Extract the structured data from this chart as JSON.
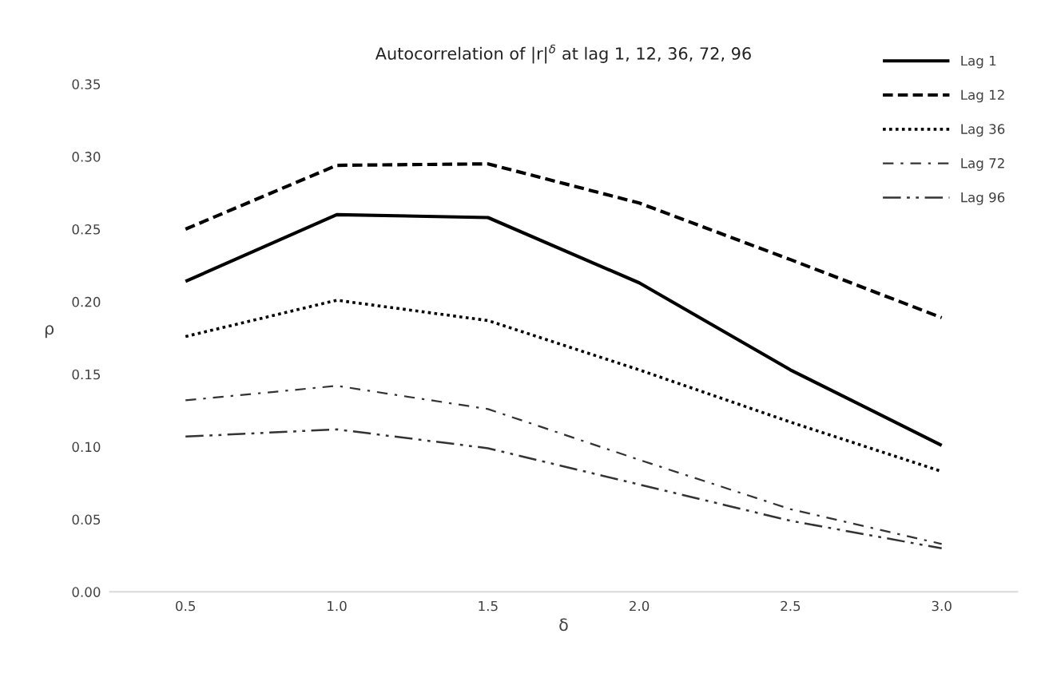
{
  "chart_data": {
    "type": "line",
    "title": "Autocorrelation of |r|$^{δ}$ at lag 1, 12, 36, 72, 96",
    "xlabel": "δ",
    "ylabel": "ρ",
    "categories": [
      "0.5",
      "1.0",
      "1.5",
      "2.0",
      "2.5",
      "3.0"
    ],
    "series": [
      {
        "name": "Lag 1",
        "color": "#000000",
        "line_style": "solid",
        "values": [
          0.214,
          0.26,
          0.258,
          0.213,
          0.153,
          0.101
        ]
      },
      {
        "name": "Lag 12",
        "color": "#000000",
        "line_style": "dashed",
        "values": [
          0.25,
          0.294,
          0.295,
          0.268,
          0.229,
          0.189
        ]
      },
      {
        "name": "Lag 36",
        "color": "#000000",
        "line_style": "dotted",
        "values": [
          0.176,
          0.201,
          0.187,
          0.153,
          0.117,
          0.083
        ]
      },
      {
        "name": "Lag 72",
        "color": "#333333",
        "line_style": "dashdot",
        "values": [
          0.132,
          0.142,
          0.126,
          0.091,
          0.057,
          0.033
        ]
      },
      {
        "name": "Lag 96",
        "color": "#333333",
        "line_style": "dashdotdot",
        "values": [
          0.107,
          0.112,
          0.099,
          0.074,
          0.049,
          0.03
        ]
      }
    ],
    "ylim": [
      0,
      0.35
    ],
    "yticks": [
      {
        "value": 0,
        "label": "0.00"
      },
      {
        "value": 0.05,
        "label": "0.05"
      },
      {
        "value": 0.1,
        "label": "0.10"
      },
      {
        "value": 0.15,
        "label": "0.15"
      },
      {
        "value": 0.2,
        "label": "0.20"
      },
      {
        "value": 0.25,
        "label": "0.25"
      },
      {
        "value": 0.3,
        "label": "0.30"
      },
      {
        "value": 0.35,
        "label": "0.35"
      }
    ],
    "grid": false,
    "legend": "top right",
    "marker": "none"
  }
}
